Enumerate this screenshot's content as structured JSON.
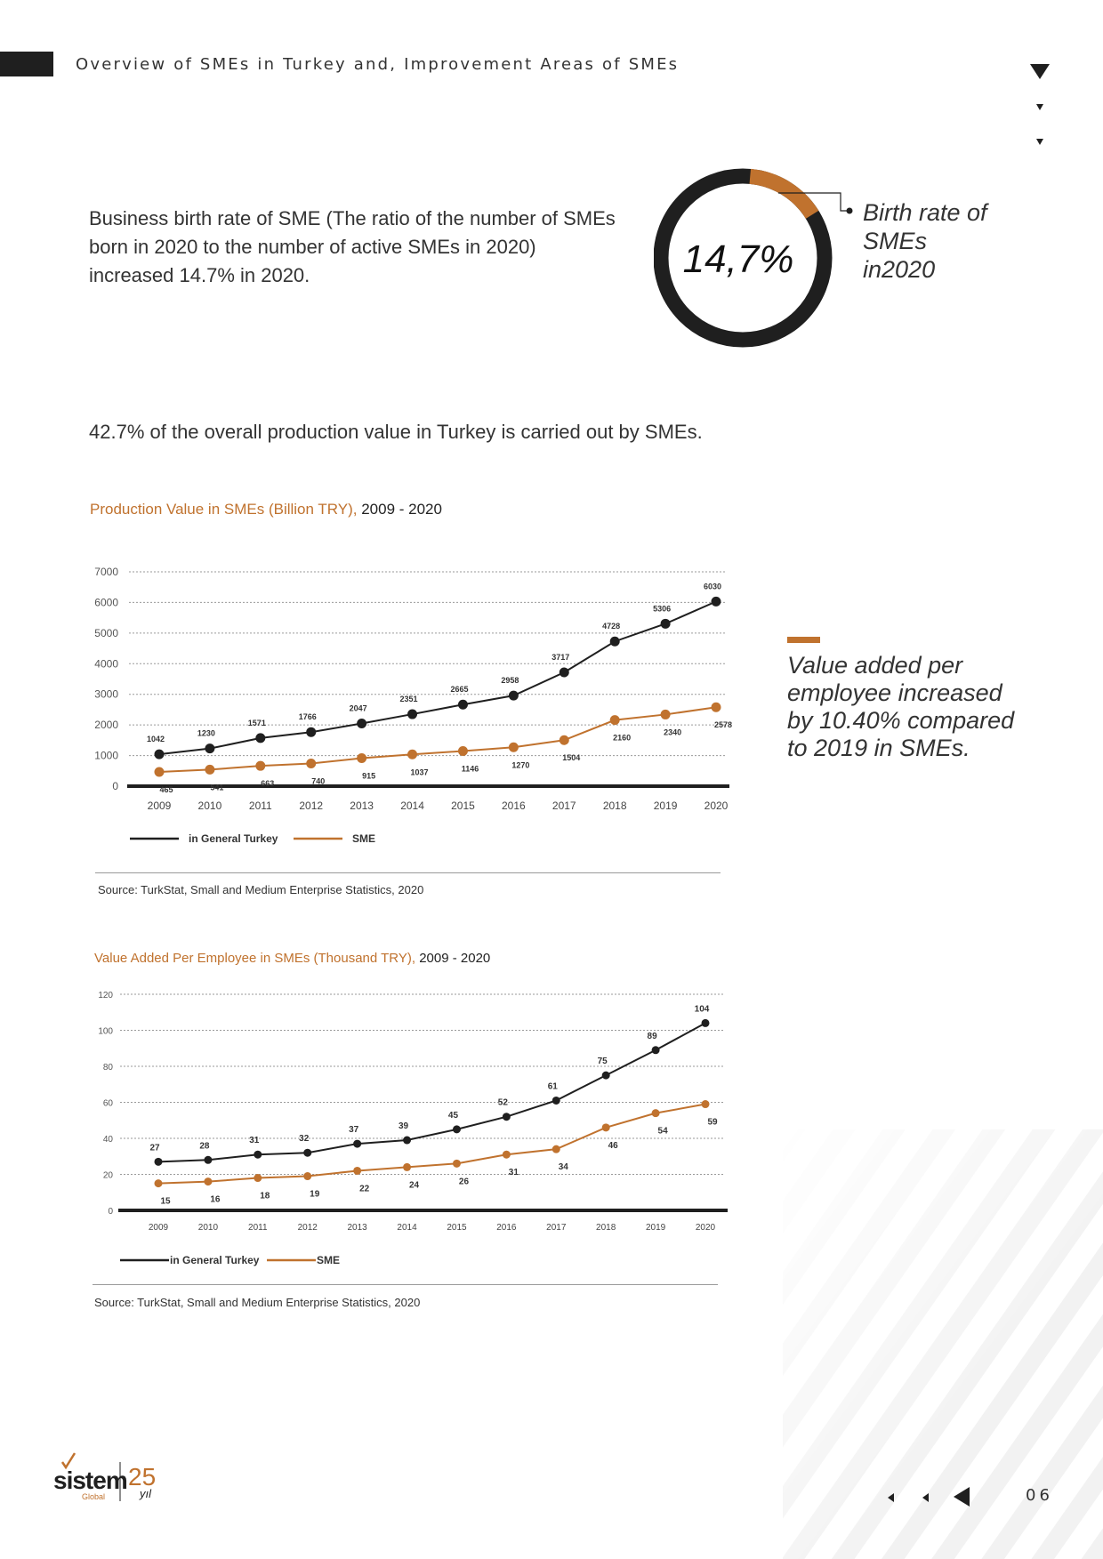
{
  "header": {
    "title": "Overview of SMEs in Turkey and, Improvement Areas of SMEs"
  },
  "intro": {
    "text": "Business birth rate of SME (The ratio of the number of SMEs born in 2020 to the number of active SMEs in 2020) increased 14.7% in 2020."
  },
  "donut": {
    "value_text": "14,7%",
    "fraction": 0.147,
    "label": "Birth rate of SMEs in2020",
    "colors": {
      "base": "#1f1f1f",
      "accent": "#c0722e"
    }
  },
  "production_statement": "42.7% of the overall production value in Turkey is carried out by SMEs.",
  "side_note": "Value added per employee increased by 10.40% compared to 2019 in SMEs.",
  "page_number": "06",
  "logo": {
    "brand": "sistem",
    "sub": "Global",
    "years": "25",
    "years_word": "yıl"
  },
  "colors": {
    "accent": "#c0722e",
    "dark": "#1f1f1f"
  },
  "chart_data": [
    {
      "type": "line",
      "title": "Production Value in SMEs (Billion TRY),",
      "subtitle": "2009 - 2020",
      "categories": [
        "2009",
        "2010",
        "2011",
        "2012",
        "2013",
        "2014",
        "2015",
        "2016",
        "2017",
        "2018",
        "2019",
        "2020"
      ],
      "series": [
        {
          "name": "in General Turkey",
          "color": "#1f1f1f",
          "values": [
            1042,
            1230,
            1571,
            1766,
            2047,
            2351,
            2665,
            2958,
            3717,
            4728,
            5306,
            6030
          ]
        },
        {
          "name": "SME",
          "color": "#c0722e",
          "values": [
            465,
            541,
            663,
            740,
            915,
            1037,
            1146,
            1270,
            1504,
            2160,
            2340,
            2578
          ]
        }
      ],
      "yticks": [
        0,
        1000,
        2000,
        3000,
        4000,
        5000,
        6000,
        7000
      ],
      "ylim": [
        0,
        7000
      ],
      "grid": true,
      "legend": "bottom-left",
      "source": "Source: TurkStat, Small and Medium Enterprise Statistics, 2020"
    },
    {
      "type": "line",
      "title": "Value Added Per Employee in SMEs (Thousand TRY),",
      "subtitle": "2009 - 2020",
      "categories": [
        "2009",
        "2010",
        "2011",
        "2012",
        "2013",
        "2014",
        "2015",
        "2016",
        "2017",
        "2018",
        "2019",
        "2020"
      ],
      "series": [
        {
          "name": "in General Turkey",
          "color": "#1f1f1f",
          "values": [
            27,
            28,
            31,
            32,
            37,
            39,
            45,
            52,
            61,
            75,
            89,
            104
          ]
        },
        {
          "name": "SME",
          "color": "#c0722e",
          "values": [
            15,
            16,
            18,
            19,
            22,
            24,
            26,
            31,
            34,
            46,
            54,
            59
          ]
        }
      ],
      "yticks": [
        0,
        20,
        40,
        60,
        80,
        100,
        120
      ],
      "ylim": [
        0,
        120
      ],
      "grid": true,
      "legend": "bottom-left",
      "source": "Source: TurkStat, Small and Medium Enterprise Statistics, 2020"
    }
  ]
}
